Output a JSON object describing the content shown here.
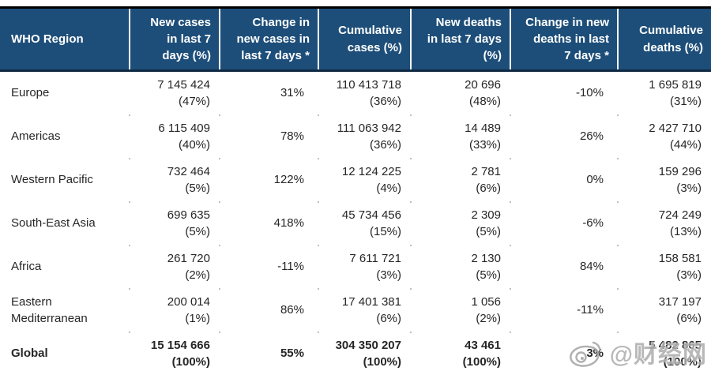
{
  "colors": {
    "header_bg": "#1D4E79",
    "header_text": "#FFFFFF",
    "header_top_border": "#000000",
    "header_bottom_border": "#102A43",
    "body_text": "#262626",
    "watermark_gray": "#AFAFAF"
  },
  "table": {
    "header": [
      {
        "lines": [
          "WHO Region"
        ],
        "align": "left"
      },
      {
        "lines": [
          "New cases",
          "in last 7",
          "days (%)"
        ],
        "align": "right"
      },
      {
        "lines": [
          "Change in",
          "new cases in",
          "last 7 days *"
        ],
        "align": "right"
      },
      {
        "lines": [
          "Cumulative",
          "cases (%)"
        ],
        "align": "right"
      },
      {
        "lines": [
          "New deaths",
          "in last 7 days",
          "(%)"
        ],
        "align": "right"
      },
      {
        "lines": [
          "Change in new",
          "deaths in last",
          "7 days *"
        ],
        "align": "right"
      },
      {
        "lines": [
          "Cumulative",
          "deaths (%)"
        ],
        "align": "right"
      }
    ],
    "column_keys": [
      "new-cases",
      "change-new-cases",
      "cumulative-cases",
      "new-deaths",
      "change-new-deaths",
      "cumulative-deaths"
    ],
    "rows": [
      {
        "region": "Europe",
        "bold": false,
        "cells": [
          [
            "7 145 424",
            "(47%)"
          ],
          [
            "31%"
          ],
          [
            "110 413 718",
            "(36%)"
          ],
          [
            "20 696",
            "(48%)"
          ],
          [
            "-10%"
          ],
          [
            "1 695 819",
            "(31%)"
          ]
        ]
      },
      {
        "region": "Americas",
        "bold": false,
        "cells": [
          [
            "6 115 409",
            "(40%)"
          ],
          [
            "78%"
          ],
          [
            "111 063 942",
            "(36%)"
          ],
          [
            "14 489",
            "(33%)"
          ],
          [
            "26%"
          ],
          [
            "2 427 710",
            "(44%)"
          ]
        ]
      },
      {
        "region": "Western Pacific",
        "bold": false,
        "cells": [
          [
            "732 464",
            "(5%)"
          ],
          [
            "122%"
          ],
          [
            "12 124 225",
            "(4%)"
          ],
          [
            "2 781",
            "(6%)"
          ],
          [
            "0%"
          ],
          [
            "159 296",
            "(3%)"
          ]
        ]
      },
      {
        "region": "South-East Asia",
        "bold": false,
        "cells": [
          [
            "699 635",
            "(5%)"
          ],
          [
            "418%"
          ],
          [
            "45 734 456",
            "(15%)"
          ],
          [
            "2 309",
            "(5%)"
          ],
          [
            "-6%"
          ],
          [
            "724 249",
            "(13%)"
          ]
        ]
      },
      {
        "region": "Africa",
        "bold": false,
        "cells": [
          [
            "261 720",
            "(2%)"
          ],
          [
            "-11%"
          ],
          [
            "7 611 721",
            "(3%)"
          ],
          [
            "2 130",
            "(5%)"
          ],
          [
            "84%"
          ],
          [
            "158 581",
            "(3%)"
          ]
        ]
      },
      {
        "region": "Eastern Mediterranean",
        "bold": false,
        "cells": [
          [
            "200 014",
            "(1%)"
          ],
          [
            "86%"
          ],
          [
            "17 401 381",
            "(6%)"
          ],
          [
            "1 056",
            "(2%)"
          ],
          [
            "-11%"
          ],
          [
            "317 197",
            "(6%)"
          ]
        ]
      },
      {
        "region": "Global",
        "bold": true,
        "cells": [
          [
            "15 154 666",
            "(100%)"
          ],
          [
            "55%"
          ],
          [
            "304 350 207",
            "(100%)"
          ],
          [
            "43 461",
            "(100%)"
          ],
          [
            "3%"
          ],
          [
            "5 482 865",
            "(100%)"
          ]
        ]
      }
    ]
  },
  "watermark": {
    "text": "@财经网",
    "icon": "weibo-eye-icon"
  }
}
